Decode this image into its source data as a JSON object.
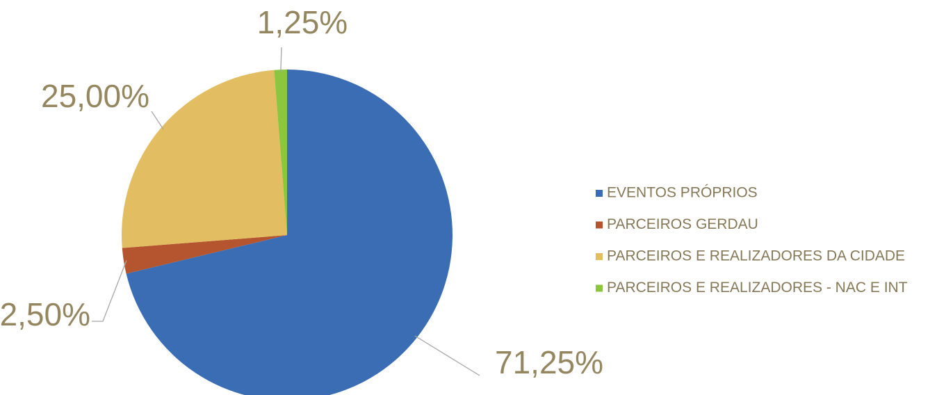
{
  "chart_data": {
    "type": "pie",
    "categories": [
      "EVENTOS PRÓPRIOS",
      "PARCEIROS GERDAU",
      "PARCEIROS E REALIZADORES DA CIDADE",
      "PARCEIROS E REALIZADORES - NAC E INT"
    ],
    "values": [
      71.25,
      2.5,
      25,
      1.25
    ],
    "value_labels": [
      "71,25%",
      "2,50%",
      "25,00%",
      "1,25%"
    ],
    "colors": [
      "#3b6db4",
      "#b5552f",
      "#e2bd62",
      "#8cc63f"
    ],
    "legend": "right"
  }
}
